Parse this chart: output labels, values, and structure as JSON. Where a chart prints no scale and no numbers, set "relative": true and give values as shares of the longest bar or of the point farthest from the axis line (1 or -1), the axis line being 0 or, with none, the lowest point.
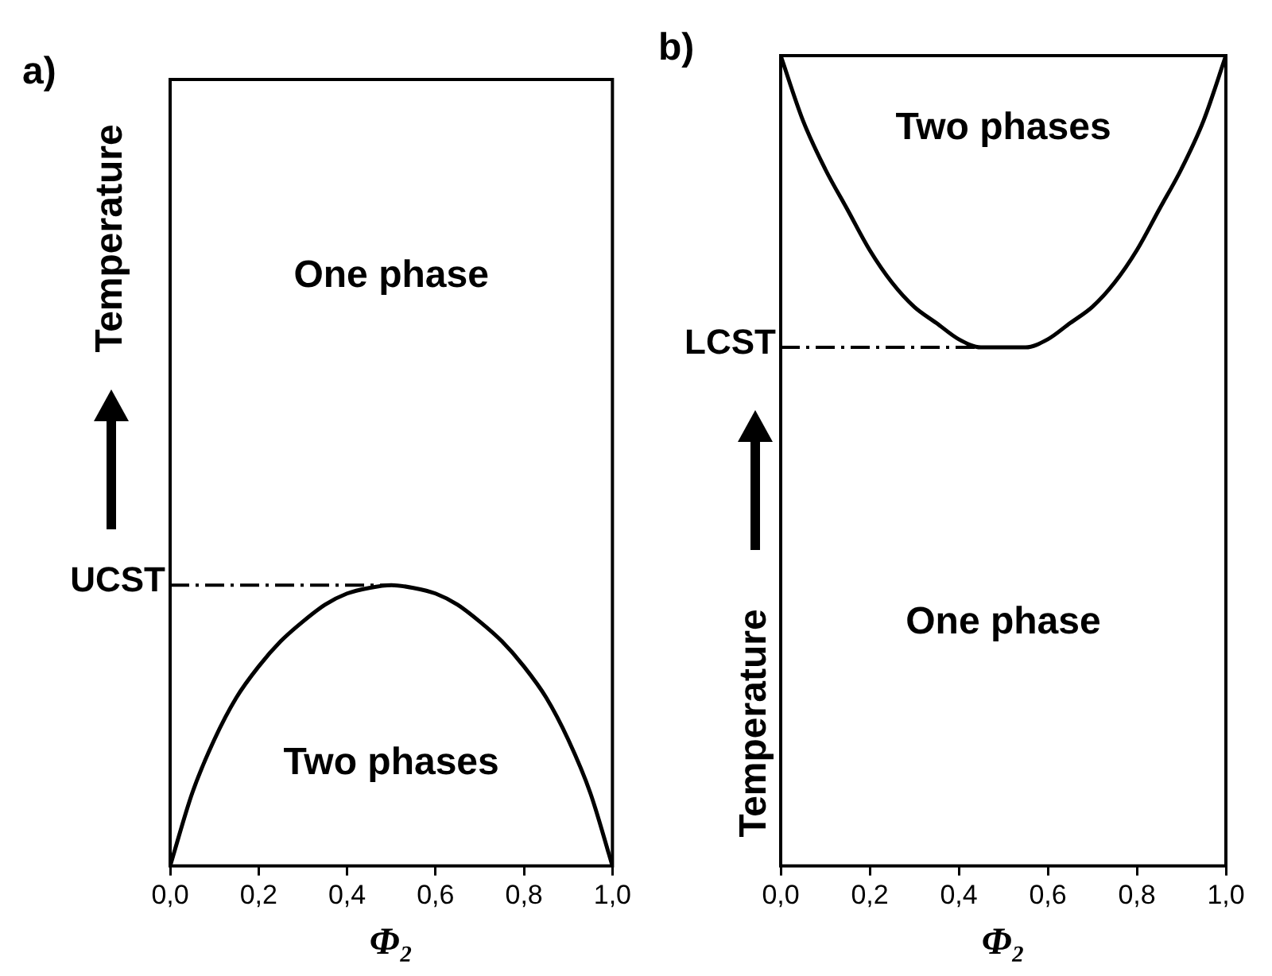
{
  "chart_data": [
    {
      "type": "line",
      "title": "a)",
      "xlabel": "Φ₂",
      "ylabel": "Temperature",
      "relative": true,
      "tick_labels": "x",
      "legend": false,
      "grid": false,
      "marker": "none",
      "line_style": "solid",
      "x": [
        0,
        0.05,
        0.1,
        0.15,
        0.2,
        0.25,
        0.3,
        0.35,
        0.4,
        0.45,
        0.5,
        0.55,
        0.6,
        0.65,
        0.7,
        0.75,
        0.8,
        0.85,
        0.9,
        0.95,
        1
      ],
      "series": [
        {
          "color": "#000000",
          "values": [
            0,
            0.26,
            0.45,
            0.6,
            0.71,
            0.8,
            0.87,
            0.93,
            0.97,
            0.99,
            1,
            0.99,
            0.97,
            0.93,
            0.87,
            0.8,
            0.71,
            0.6,
            0.45,
            0.26,
            0
          ]
        }
      ],
      "xlim": [
        0,
        1
      ],
      "xticks": [
        {
          "value": 0,
          "label": "0,0"
        },
        {
          "value": 0.2,
          "label": "0,2"
        },
        {
          "value": 0.4,
          "label": "0,4"
        },
        {
          "value": 0.6,
          "label": "0,6"
        },
        {
          "value": 0.8,
          "label": "0,8"
        },
        {
          "value": 1,
          "label": "1,0"
        }
      ],
      "ref_lines": [
        {
          "axis": "y",
          "value": 1,
          "label": "UCST",
          "line_style": "dashed",
          "color": "#000000"
        }
      ],
      "annotations": [
        "One phase",
        "Two phases"
      ]
    },
    {
      "type": "line",
      "title": "b)",
      "xlabel": "Φ₂",
      "ylabel": "Temperature",
      "relative": true,
      "tick_labels": "x",
      "legend": false,
      "grid": false,
      "marker": "none",
      "line_style": "solid",
      "x": [
        0,
        0.05,
        0.1,
        0.15,
        0.2,
        0.25,
        0.3,
        0.35,
        0.4,
        0.45,
        0.5,
        0.55,
        0.6,
        0.65,
        0.7,
        0.75,
        0.8,
        0.85,
        0.9,
        0.95,
        1
      ],
      "series": [
        {
          "color": "#000000",
          "values": [
            1,
            0.92,
            0.86,
            0.81,
            0.76,
            0.72,
            0.69,
            0.67,
            0.65,
            0.64,
            0.64,
            0.64,
            0.65,
            0.67,
            0.69,
            0.72,
            0.76,
            0.81,
            0.86,
            0.92,
            1
          ]
        }
      ],
      "xlim": [
        0,
        1
      ],
      "xticks": [
        {
          "value": 0,
          "label": "0,0"
        },
        {
          "value": 0.2,
          "label": "0,2"
        },
        {
          "value": 0.4,
          "label": "0,4"
        },
        {
          "value": 0.6,
          "label": "0,6"
        },
        {
          "value": 0.8,
          "label": "0,8"
        },
        {
          "value": 1,
          "label": "1,0"
        }
      ],
      "ref_lines": [
        {
          "axis": "y",
          "value": 0.64,
          "label": "LCST",
          "line_style": "dashed",
          "color": "#000000"
        }
      ],
      "annotations": [
        "Two phases",
        "One phase"
      ]
    }
  ]
}
